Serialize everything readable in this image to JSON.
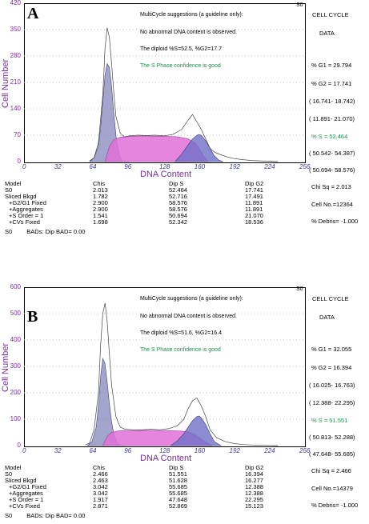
{
  "panels": [
    {
      "letter": "A",
      "s0_tag": "S0",
      "messages": [
        "MultiCycle suggestions (a guideline only):",
        "No abnormal DNA content is observed.",
        "The diploid %S=52.5, %G2=17.7",
        "The S Phase confidence is good"
      ],
      "ylabel": "Cell Number",
      "xlabel": "DNA Content",
      "yticks": [
        "0",
        "70",
        "140",
        "210",
        "280",
        "350",
        "420"
      ],
      "xticks": [
        "0",
        "32",
        "64",
        "96",
        "128",
        "160",
        "192",
        "224",
        "256"
      ],
      "side": {
        "title1": "CELL  CYCLE",
        "title2": "DATA",
        "g1": "% G1 = 29.794",
        "g2": "% G2 = 17.741",
        "g2_range": "( 16.741- 18.742)",
        "g1_range": "( 11.891- 21.070)",
        "s": "% S  = 52.464",
        "s_range1": "( 50.542- 54.387)",
        "s_range2": "( 50.694- 58.576)",
        "chi": "Chi Sq = 2.013",
        "cellno": "Cell No.=12364",
        "debris": "% Debris= -1.000"
      },
      "table": {
        "headers": [
          "Model",
          "Chis",
          "Dip S",
          "Dip G2"
        ],
        "rows": [
          [
            "S0",
            "2.013",
            "52.464",
            "17.741"
          ],
          [
            "Sliced Bkgd",
            "1.782",
            "52.716",
            "17.491"
          ],
          [
            "+G2/G1 Fixed",
            "2.900",
            "58.576",
            "11.891"
          ],
          [
            "+Aggregates",
            "2.900",
            "58.576",
            "11.891"
          ],
          [
            "+S Order = 1",
            "1.541",
            "50.694",
            "21.070"
          ],
          [
            "+CVs Fixed",
            "1.698",
            "52.342",
            "18.536"
          ]
        ]
      },
      "footer": [
        "S0",
        "BADs: Dip BAD= 0.00"
      ],
      "chart_data": {
        "type": "area",
        "xlim": [
          0,
          256
        ],
        "ylim": [
          0,
          420
        ],
        "series": [
          {
            "name": "",
            "x": [
              60,
              64,
              68,
              70,
              72,
              74,
              76,
              78,
              80,
              82,
              84,
              86,
              88,
              90,
              92,
              96
            ],
            "values": [
              0,
              10,
              40,
              90,
              160,
              230,
              260,
              250,
              200,
              130,
              70,
              30,
              10,
              0,
              0,
              0
            ]
          },
          {
            "name": "",
            "x": [
              74,
              78,
              82,
              88,
              96,
              110,
              128,
              140,
              150,
              156,
              160,
              164,
              168
            ],
            "values": [
              0,
              40,
              58,
              65,
              67,
              68,
              67,
              66,
              60,
              50,
              35,
              15,
              0
            ]
          },
          {
            "name": "",
            "x": [
              138,
              144,
              150,
              154,
              158,
              160,
              162,
              166,
              170,
              174,
              178,
              182
            ],
            "values": [
              0,
              20,
              45,
              60,
              70,
              72,
              70,
              55,
              35,
              15,
              4,
              0
            ]
          },
          {
            "name": "",
            "x": [
              60,
              64,
              68,
              72,
              74,
              76,
              78,
              80,
              82,
              84,
              88,
              92,
              96,
              104,
              112,
              120,
              128,
              136,
              144,
              150,
              154,
              158,
              160,
              162,
              166,
              170,
              174,
              180,
              186,
              192,
              200,
              208,
              216,
              224,
              232
            ],
            "values": [
              2,
              10,
              50,
              175,
              300,
              355,
              330,
              260,
              185,
              120,
              75,
              65,
              68,
              70,
              69,
              70,
              68,
              72,
              85,
              110,
              125,
              105,
              95,
              85,
              60,
              35,
              25,
              18,
              12,
              8,
              5,
              3,
              2,
              1,
              0
            ]
          }
        ]
      }
    },
    {
      "letter": "B",
      "s0_tag": "S0",
      "messages": [
        "MultiCycle suggestions (a guideline only):",
        "No abnormal DNA content is observed.",
        "The diploid %S=51.6, %G2=16.4",
        "The S Phase confidence is good"
      ],
      "ylabel": "Cell Number",
      "xlabel": "DNA Content",
      "yticks": [
        "0",
        "100",
        "200",
        "300",
        "400",
        "500",
        "600"
      ],
      "xticks": [
        "0",
        "32",
        "64",
        "96",
        "128",
        "160",
        "192",
        "224",
        "256"
      ],
      "side": {
        "title1": "CELL  CYCLE",
        "title2": "DATA",
        "g1": "% G1 = 32.055",
        "g2": "% G2 = 16.394",
        "g2_range": "( 16.025- 16.763)",
        "g1_range": "( 12.388- 22.295)",
        "s": "% S  = 51.551",
        "s_range1": "( 50.813- 52.288)",
        "s_range2": "( 47.648- 55.685)",
        "chi": "Chi Sq =  2.466",
        "cellno": "Cell No.=14379",
        "debris": "% Debris= -1.000"
      },
      "table": {
        "headers": [
          "Model",
          "Chis",
          "Dip S",
          "Dip G2"
        ],
        "rows": [
          [
            "S0",
            "2.466",
            "51.551",
            "16.394"
          ],
          [
            "Sliced Bkgd",
            "2.463",
            "51.628",
            "16.277"
          ],
          [
            "+G2/G1 Fixed",
            "3.042",
            "55.685",
            "12.388"
          ],
          [
            "+Aggregates",
            "3.042",
            "55.685",
            "12.388"
          ],
          [
            "+S Order = 1",
            "1.917",
            "47.648",
            "22.295"
          ],
          [
            "+CVs Fixed",
            "2.871",
            "52.869",
            "15.123"
          ]
        ]
      },
      "footer": [
        "S0",
        "BADs: Dip BAD= 0.00"
      ],
      "chart_data": {
        "type": "area",
        "xlim": [
          0,
          256
        ],
        "ylim": [
          0,
          600
        ],
        "series": [
          {
            "name": "",
            "x": [
              58,
              62,
              66,
              68,
              70,
              72,
              74,
              76,
              78,
              80,
              82,
              84,
              86,
              88,
              92
            ],
            "values": [
              0,
              15,
              70,
              150,
              260,
              330,
              310,
              240,
              160,
              90,
              45,
              20,
              8,
              0,
              0
            ]
          },
          {
            "name": "",
            "x": [
              72,
              76,
              80,
              86,
              96,
              110,
              128,
              140,
              150,
              156,
              160,
              166,
              172
            ],
            "values": [
              0,
              35,
              50,
              56,
              57,
              58,
              57,
              56,
              52,
              42,
              30,
              12,
              0
            ]
          },
          {
            "name": "",
            "x": [
              134,
              140,
              146,
              150,
              154,
              158,
              160,
              162,
              166,
              170,
              174,
              180
            ],
            "values": [
              0,
              18,
              45,
              70,
              95,
              110,
              112,
              105,
              80,
              45,
              15,
              0
            ]
          },
          {
            "name": "",
            "x": [
              56,
              60,
              64,
              68,
              70,
              72,
              74,
              76,
              78,
              80,
              84,
              88,
              92,
              100,
              108,
              116,
              124,
              132,
              140,
              146,
              150,
              154,
              158,
              160,
              162,
              166,
              170,
              176,
              184,
              192,
              200,
              210,
              220,
              232
            ],
            "values": [
              2,
              10,
              60,
              200,
              380,
              500,
              540,
              470,
              350,
              230,
              110,
              70,
              62,
              60,
              60,
              62,
              60,
              64,
              75,
              100,
              140,
              170,
              180,
              165,
              150,
              110,
              60,
              30,
              15,
              8,
              4,
              2,
              1,
              0
            ]
          }
        ]
      }
    }
  ]
}
